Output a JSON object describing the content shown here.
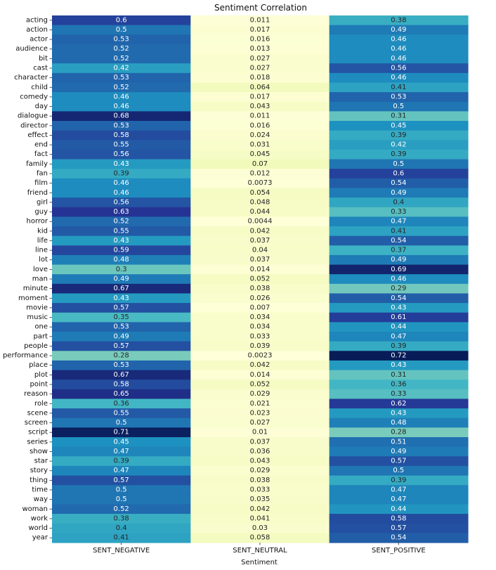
{
  "chart_data": {
    "type": "heatmap",
    "title": "Sentiment Correlation",
    "xlabel": "Sentiment",
    "ylabel": "",
    "colormap": "YlGnBu",
    "columns": [
      "SENT_NEGATIVE",
      "SENT_NEUTRAL",
      "SENT_POSITIVE"
    ],
    "rows": [
      "acting",
      "action",
      "actor",
      "audience",
      "bit",
      "cast",
      "character",
      "child",
      "comedy",
      "day",
      "dialogue",
      "director",
      "effect",
      "end",
      "fact",
      "family",
      "fan",
      "film",
      "friend",
      "girl",
      "guy",
      "horror",
      "kid",
      "life",
      "line",
      "lot",
      "love",
      "man",
      "minute",
      "moment",
      "movie",
      "music",
      "one",
      "part",
      "people",
      "performance",
      "place",
      "plot",
      "point",
      "reason",
      "role",
      "scene",
      "screen",
      "script",
      "series",
      "show",
      "star",
      "story",
      "thing",
      "time",
      "way",
      "woman",
      "work",
      "world",
      "year"
    ],
    "labels": [
      [
        "0.6",
        "0.011",
        "0.38"
      ],
      [
        "0.5",
        "0.017",
        "0.49"
      ],
      [
        "0.53",
        "0.016",
        "0.46"
      ],
      [
        "0.52",
        "0.013",
        "0.46"
      ],
      [
        "0.52",
        "0.027",
        "0.46"
      ],
      [
        "0.42",
        "0.027",
        "0.56"
      ],
      [
        "0.53",
        "0.018",
        "0.46"
      ],
      [
        "0.52",
        "0.064",
        "0.41"
      ],
      [
        "0.46",
        "0.017",
        "0.53"
      ],
      [
        "0.46",
        "0.043",
        "0.5"
      ],
      [
        "0.68",
        "0.011",
        "0.31"
      ],
      [
        "0.53",
        "0.016",
        "0.45"
      ],
      [
        "0.58",
        "0.024",
        "0.39"
      ],
      [
        "0.55",
        "0.031",
        "0.42"
      ],
      [
        "0.56",
        "0.045",
        "0.39"
      ],
      [
        "0.43",
        "0.07",
        "0.5"
      ],
      [
        "0.39",
        "0.012",
        "0.6"
      ],
      [
        "0.46",
        "0.0073",
        "0.54"
      ],
      [
        "0.46",
        "0.054",
        "0.49"
      ],
      [
        "0.56",
        "0.048",
        "0.4"
      ],
      [
        "0.63",
        "0.044",
        "0.33"
      ],
      [
        "0.52",
        "0.0044",
        "0.47"
      ],
      [
        "0.55",
        "0.042",
        "0.41"
      ],
      [
        "0.43",
        "0.037",
        "0.54"
      ],
      [
        "0.59",
        "0.04",
        "0.37"
      ],
      [
        "0.48",
        "0.037",
        "0.49"
      ],
      [
        "0.3",
        "0.014",
        "0.69"
      ],
      [
        "0.49",
        "0.052",
        "0.46"
      ],
      [
        "0.67",
        "0.038",
        "0.29"
      ],
      [
        "0.43",
        "0.026",
        "0.54"
      ],
      [
        "0.57",
        "0.007",
        "0.43"
      ],
      [
        "0.35",
        "0.034",
        "0.61"
      ],
      [
        "0.53",
        "0.034",
        "0.44"
      ],
      [
        "0.49",
        "0.033",
        "0.47"
      ],
      [
        "0.57",
        "0.039",
        "0.39"
      ],
      [
        "0.28",
        "0.0023",
        "0.72"
      ],
      [
        "0.53",
        "0.042",
        "0.43"
      ],
      [
        "0.67",
        "0.014",
        "0.31"
      ],
      [
        "0.58",
        "0.052",
        "0.36"
      ],
      [
        "0.65",
        "0.029",
        "0.33"
      ],
      [
        "0.36",
        "0.021",
        "0.62"
      ],
      [
        "0.55",
        "0.023",
        "0.43"
      ],
      [
        "0.5",
        "0.027",
        "0.48"
      ],
      [
        "0.71",
        "0.01",
        "0.28"
      ],
      [
        "0.45",
        "0.037",
        "0.51"
      ],
      [
        "0.47",
        "0.036",
        "0.49"
      ],
      [
        "0.39",
        "0.043",
        "0.57"
      ],
      [
        "0.47",
        "0.029",
        "0.5"
      ],
      [
        "0.57",
        "0.038",
        "0.39"
      ],
      [
        "0.5",
        "0.033",
        "0.47"
      ],
      [
        "0.5",
        "0.035",
        "0.47"
      ],
      [
        "0.52",
        "0.042",
        "0.44"
      ],
      [
        "0.38",
        "0.041",
        "0.58"
      ],
      [
        "0.4",
        "0.03",
        "0.57"
      ],
      [
        "0.41",
        "0.058",
        "0.54"
      ]
    ],
    "colorbar": false,
    "grid": false
  }
}
